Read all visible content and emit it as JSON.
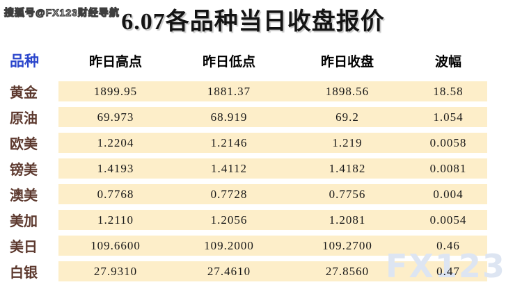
{
  "title": "6.07各品种当日收盘报价",
  "watermarks": {
    "top_left": "搜狐号@FX123财经导航",
    "bottom_right": "FX123"
  },
  "chart_data": {
    "type": "table",
    "title": "6.07各品种当日收盘报价",
    "columns": [
      "品种",
      "昨日高点",
      "昨日低点",
      "昨日收盘",
      "波幅"
    ],
    "rows": [
      [
        "黄金",
        "1899.95",
        "1881.37",
        "1898.56",
        "18.58"
      ],
      [
        "原油",
        "69.973",
        "68.919",
        "69.2",
        "1.054"
      ],
      [
        "欧美",
        "1.2204",
        "1.2146",
        "1.219",
        "0.0058"
      ],
      [
        "镑美",
        "1.4193",
        "1.4112",
        "1.4182",
        "0.0081"
      ],
      [
        "澳美",
        "0.7768",
        "0.7728",
        "0.7756",
        "0.004"
      ],
      [
        "美加",
        "1.2110",
        "1.2056",
        "1.2081",
        "0.0054"
      ],
      [
        "美日",
        "109.6600",
        "109.2000",
        "109.2700",
        "0.46"
      ],
      [
        "白银",
        "27.9310",
        "27.4610",
        "27.8560",
        "0.47"
      ]
    ],
    "layout_hints": {
      "row_band_columns": [
        "昨日高点",
        "昨日低点",
        "昨日收盘",
        "波幅"
      ],
      "grid": "off",
      "legend": "none"
    }
  },
  "colors": {
    "row_background": "#fdeec9",
    "product_header_text": "#2b46cc",
    "row_label_text": "#5d392e",
    "title_text": "#141414",
    "bottom_watermark_text": "#dde5f2"
  }
}
